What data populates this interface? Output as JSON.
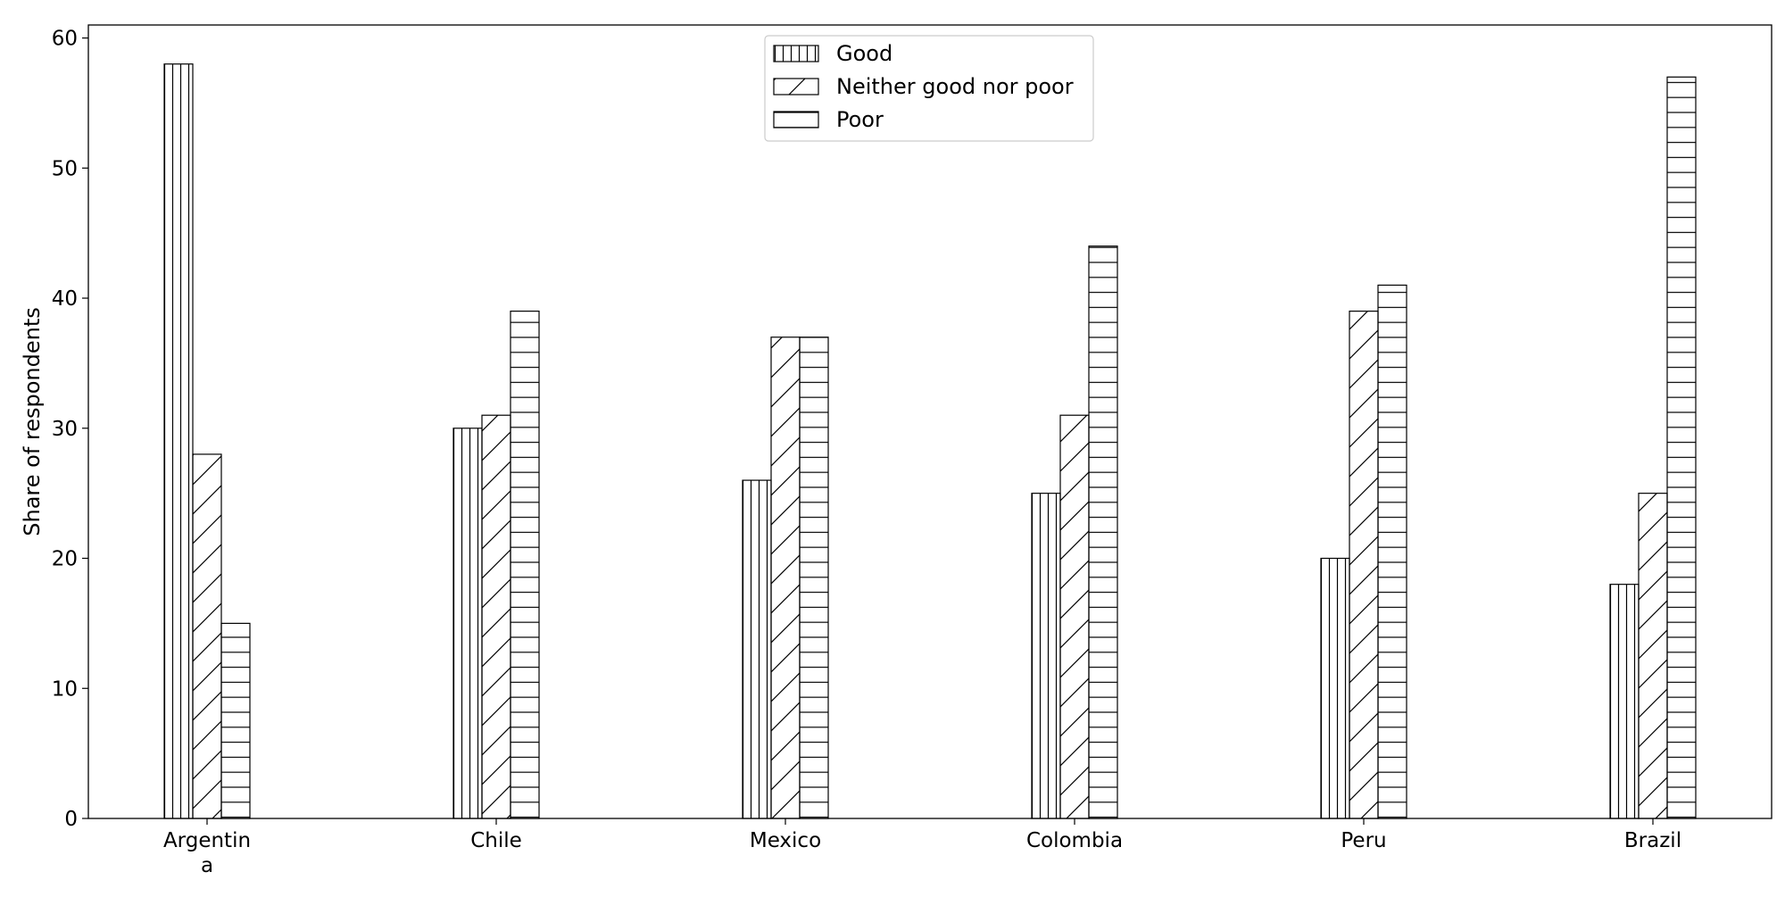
{
  "chart_data": {
    "type": "bar",
    "title": "",
    "xlabel": "",
    "ylabel": "Share of respondents",
    "categories": [
      "Argentina",
      "Chile",
      "Mexico",
      "Colombia",
      "Peru",
      "Brazil"
    ],
    "series": [
      {
        "name": "Good",
        "pattern": "vertical-lines",
        "values": [
          58,
          30,
          26,
          25,
          20,
          18
        ]
      },
      {
        "name": "Neither good nor poor",
        "pattern": "diagonal-lines",
        "values": [
          28,
          31,
          37,
          31,
          39,
          25
        ]
      },
      {
        "name": "Poor",
        "pattern": "horizontal-lines",
        "values": [
          15,
          39,
          37,
          44,
          41,
          57
        ]
      }
    ],
    "ylim": [
      0,
      61
    ],
    "yticks": [
      0,
      10,
      20,
      30,
      40,
      50,
      60
    ],
    "grid": false,
    "legend_position": "top-center",
    "colors": {
      "bar_fill": "#ffffff",
      "bar_edge": "#000000",
      "background": "#ffffff"
    }
  }
}
